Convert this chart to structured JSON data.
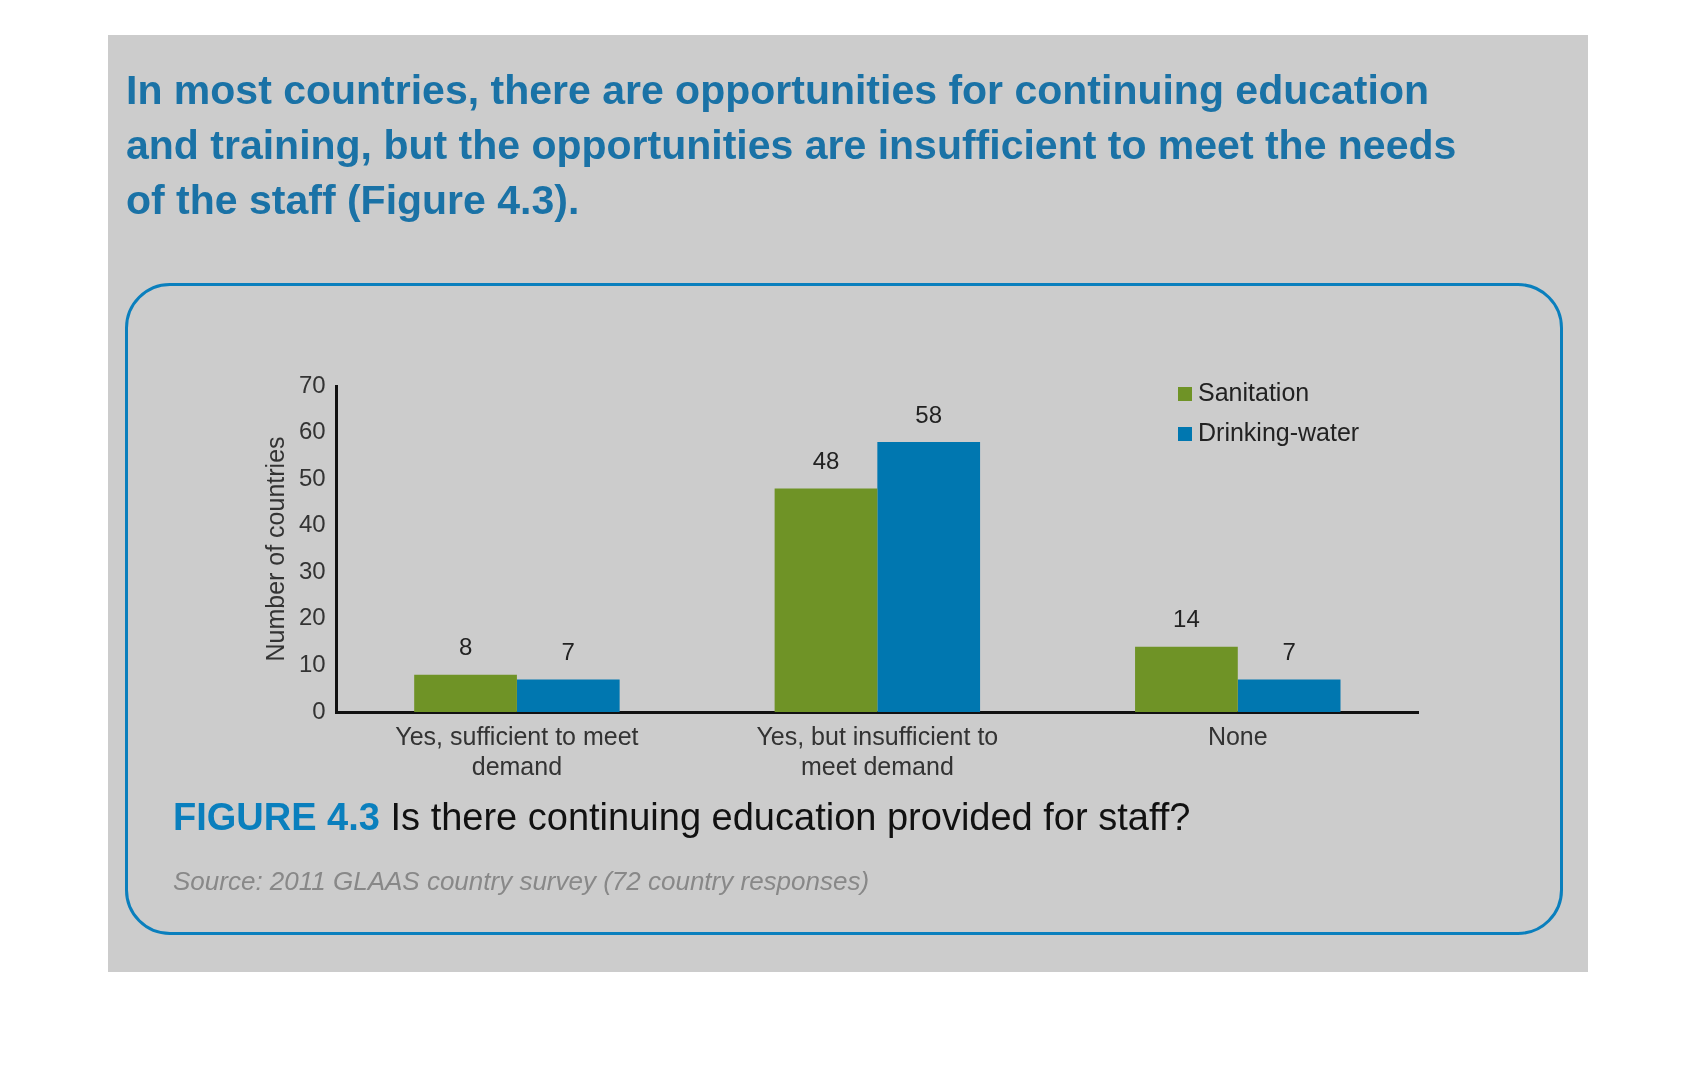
{
  "chart_data": {
    "type": "bar",
    "title": "In most countries, there are opportunities for continuing education and training, but the opportunities are insufficient to meet the needs of the staff (Figure 4.3).",
    "categories": [
      "Yes, sufficient to meet demand",
      "Yes, but insufficient to meet demand",
      "None"
    ],
    "series": [
      {
        "name": "Sanitation",
        "color": "#6f9326",
        "values": [
          8,
          48,
          14
        ]
      },
      {
        "name": "Drinking-water",
        "color": "#0077b0",
        "values": [
          7,
          58,
          7
        ]
      }
    ],
    "ylabel": "Number of countries",
    "ylim": [
      0,
      70
    ],
    "yticks": [
      0,
      10,
      20,
      30,
      40,
      50,
      60,
      70
    ],
    "data_labels": true,
    "legend": "top right",
    "annotations": [
      "FIGURE 4.3 Is there continuing education provided for staff?",
      "Source: 2011 GLAAS country survey (72 country responses)"
    ]
  }
}
